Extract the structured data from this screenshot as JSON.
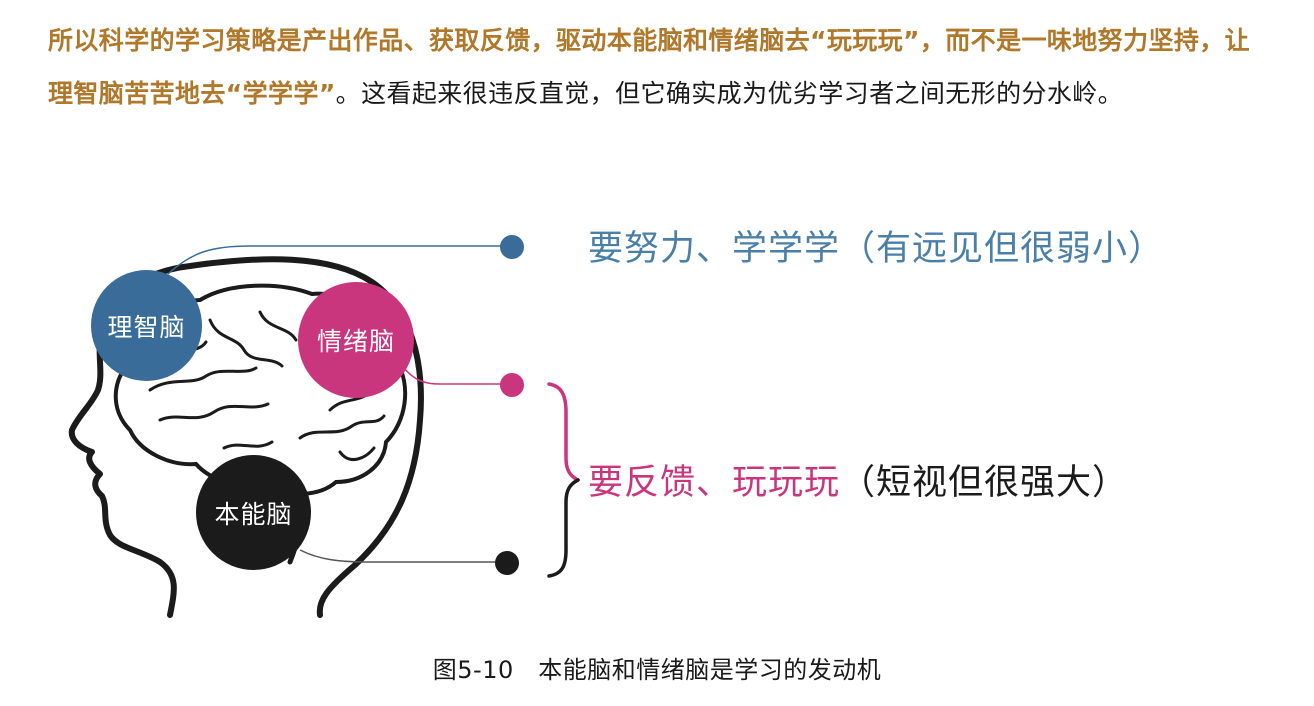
{
  "paragraph": {
    "highlight_1": "所以科学的学习策略是产出作品、获取反馈，驱动本能脑和情绪脑去“玩玩玩”，而不是一味地努力坚持，让理智脑苦苦地去“学学学”",
    "rest": "。这看起来很违反直觉，但它确实成为优劣学习者之间无形的分水岭。"
  },
  "figure": {
    "bubbles": {
      "rational": "理智脑",
      "emotional": "情绪脑",
      "instinct": "本能脑"
    },
    "labels": {
      "top": "要努力、学学学（有远见但很弱小）",
      "bottom_highlight": "要反馈、玩玩玩",
      "bottom_rest": "（短视但很强大）"
    },
    "colors": {
      "rational": "#3a6c99",
      "emotional": "#c9367e",
      "instinct": "#1b1b1b",
      "highlight": "#b0782a"
    }
  },
  "caption": "图5-10　本能脑和情绪脑是学习的发动机"
}
